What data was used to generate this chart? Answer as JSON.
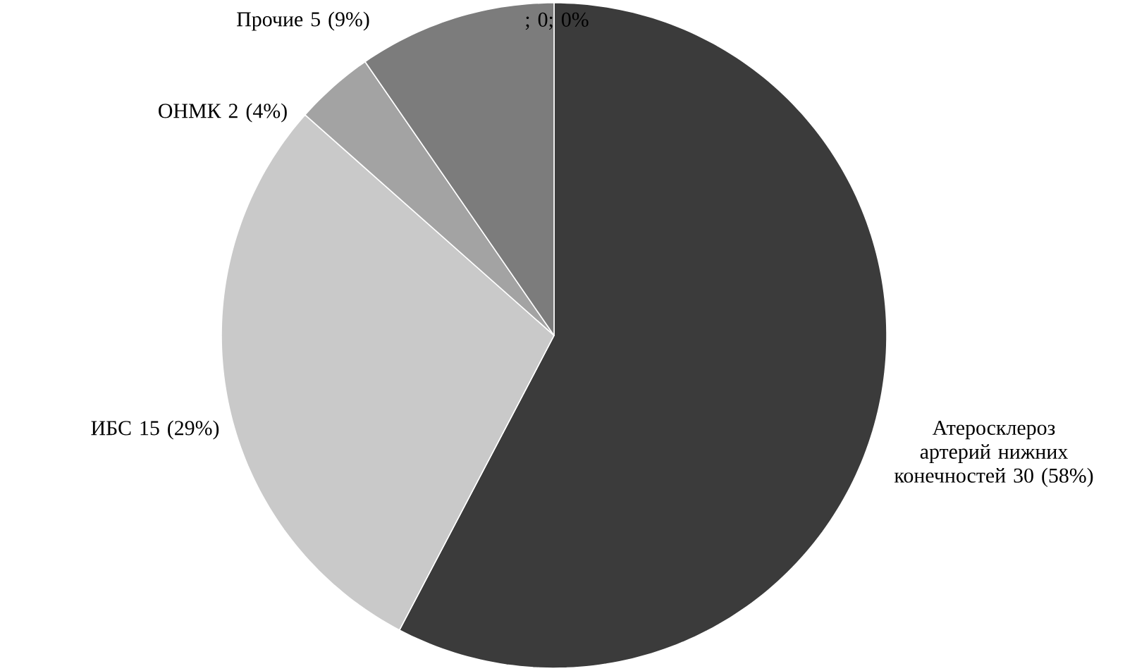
{
  "chart_data": {
    "type": "pie",
    "categories": [
      "Атеросклероз артерий нижних конечностей",
      "ИБС",
      "ОНМК",
      "Прочие",
      null
    ],
    "values": [
      30,
      15,
      2,
      5,
      0
    ],
    "colors": [
      "#3b3b3b",
      "#c9c9c9",
      "#a3a3a3",
      "#7c7c7c",
      "#5a5a5a"
    ],
    "value_labels": [
      "30 (58%)",
      "15 (29%)",
      "2 (4%)",
      "5 (9%)",
      "; 0; 0%"
    ]
  }
}
